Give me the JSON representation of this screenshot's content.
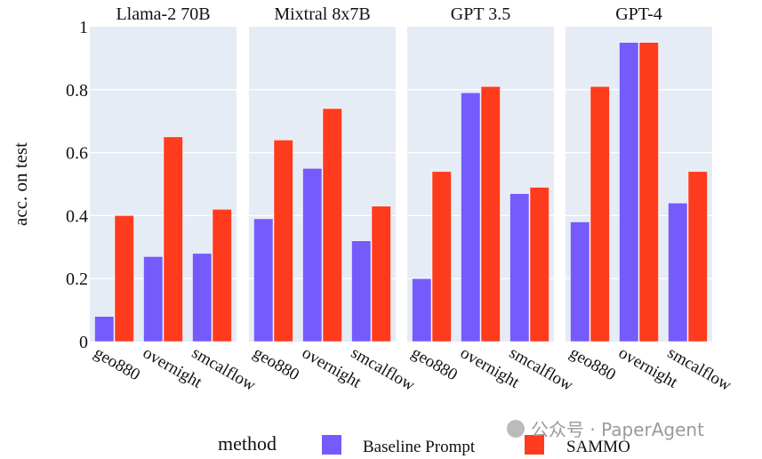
{
  "chart_data": {
    "type": "bar",
    "ylabel": "acc. on test",
    "ylim": [
      0,
      1
    ],
    "yticks": [
      "0",
      "0.2",
      "0.4",
      "0.6",
      "0.8",
      "1"
    ],
    "grid": true,
    "categories": [
      "geo880",
      "overnight",
      "smcalflow"
    ],
    "panels": [
      {
        "title": "Llama-2 70B",
        "series": [
          {
            "name": "Baseline Prompt",
            "values": [
              0.08,
              0.27,
              0.28
            ]
          },
          {
            "name": "SAMMO",
            "values": [
              0.4,
              0.65,
              0.42
            ]
          }
        ]
      },
      {
        "title": "Mixtral 8x7B",
        "series": [
          {
            "name": "Baseline Prompt",
            "values": [
              0.39,
              0.55,
              0.32
            ]
          },
          {
            "name": "SAMMO",
            "values": [
              0.64,
              0.74,
              0.43
            ]
          }
        ]
      },
      {
        "title": "GPT 3.5",
        "series": [
          {
            "name": "Baseline Prompt",
            "values": [
              0.2,
              0.79,
              0.47
            ]
          },
          {
            "name": "SAMMO",
            "values": [
              0.54,
              0.81,
              0.49
            ]
          }
        ]
      },
      {
        "title": "GPT-4",
        "series": [
          {
            "name": "Baseline Prompt",
            "values": [
              0.38,
              0.95,
              0.44
            ]
          },
          {
            "name": "SAMMO",
            "values": [
              0.81,
              0.95,
              0.54
            ]
          }
        ]
      }
    ],
    "legend": {
      "title": "method",
      "placement": "bottom",
      "entries": [
        "Baseline Prompt",
        "SAMMO"
      ]
    },
    "colors": {
      "Baseline Prompt": "#755bfb",
      "SAMMO": "#ff3b1d",
      "plot_bg": "#e5ecf6"
    }
  },
  "watermark": "公众号 · PaperAgent"
}
